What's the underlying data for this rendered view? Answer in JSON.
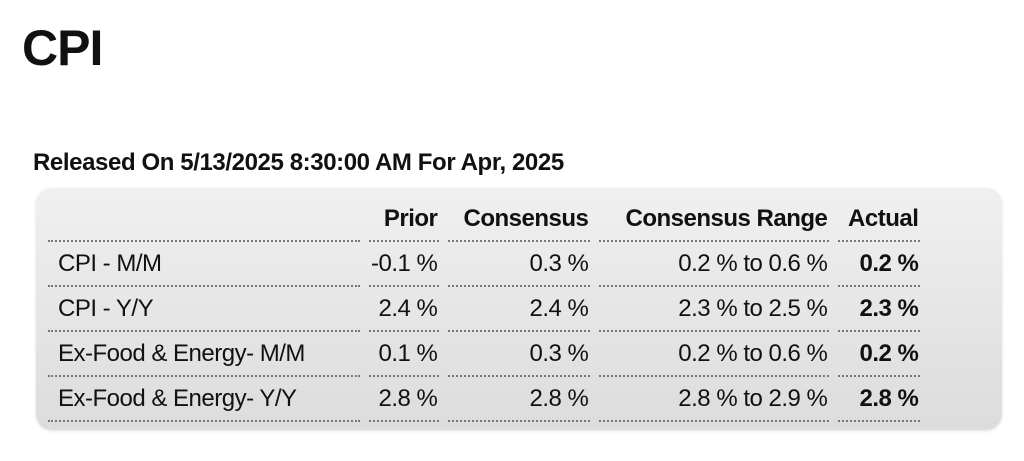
{
  "page": {
    "title": "CPI"
  },
  "release": {
    "text": "Released On 5/13/2025 8:30:00 AM For Apr, 2025"
  },
  "table": {
    "headers": {
      "prior": "Prior",
      "consensus": "Consensus",
      "consensus_range": "Consensus Range",
      "actual": "Actual"
    },
    "rows": [
      {
        "label": "CPI - M/M",
        "prior": "-0.1 %",
        "consensus": "0.3 %",
        "consensus_range": "0.2 % to 0.6 %",
        "actual": "0.2 %"
      },
      {
        "label": "CPI - Y/Y",
        "prior": "2.4 %",
        "consensus": "2.4 %",
        "consensus_range": "2.3 % to 2.5 %",
        "actual": "2.3 %"
      },
      {
        "label": "Ex-Food & Energy- M/M",
        "prior": "0.1 %",
        "consensus": "0.3 %",
        "consensus_range": "0.2 % to 0.6 %",
        "actual": "0.2 %"
      },
      {
        "label": "Ex-Food & Energy- Y/Y",
        "prior": "2.8 %",
        "consensus": "2.8 %",
        "consensus_range": "2.8 % to 2.9 %",
        "actual": "2.8 %"
      }
    ]
  },
  "colors": {
    "text": "#111111",
    "table_background_top": "#f0f0f0",
    "table_background_bottom": "#dcdcdc",
    "divider": "#777777"
  }
}
